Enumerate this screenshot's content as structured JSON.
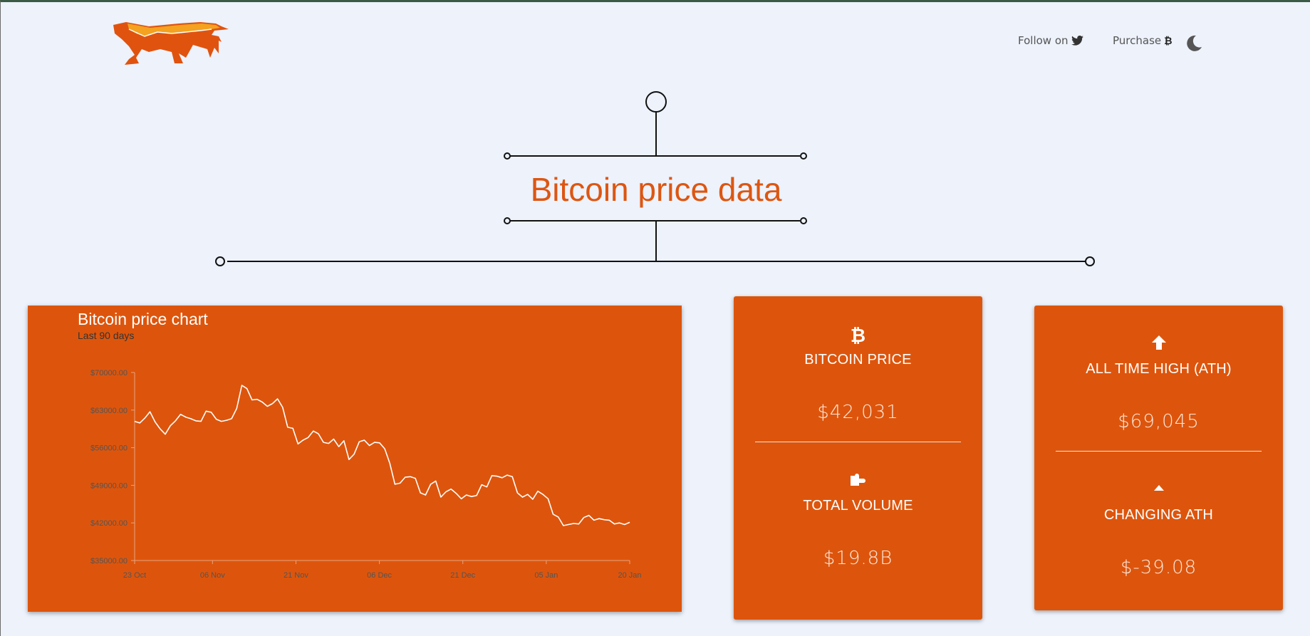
{
  "nav": {
    "follow_label": "Follow on",
    "follow_icon": "twitter-icon",
    "purchase_label": "Purchase",
    "purchase_icon": "bitcoin-icon",
    "theme_icon": "moon-icon"
  },
  "page_title": "Bitcoin price data",
  "colors": {
    "accent": "#dd550c",
    "background": "#edf2fb",
    "title": "#dd5611"
  },
  "price_card": {
    "price_icon": "bitcoin-icon",
    "price_label": "BITCOIN PRICE",
    "price_value": "$42,031",
    "volume_icon": "puzzle-icon",
    "volume_label": "TOTAL VOLUME",
    "volume_value": "$19.8B"
  },
  "ath_card": {
    "ath_icon": "arrow-up-icon",
    "ath_label": "ALL TIME HIGH (ATH)",
    "ath_value": "$69,045",
    "change_icon": "caret-up-icon",
    "change_label": "CHANGING ATH",
    "change_value": "$-39.08"
  },
  "chart_data": {
    "type": "line",
    "title": "Bitcoin price chart",
    "subtitle": "Last 90 days",
    "xlabel": "",
    "ylabel": "",
    "x_ticks": [
      "23 Oct",
      "06 Nov",
      "21 Nov",
      "06 Dec",
      "21 Dec",
      "05 Jan",
      "20 Jan"
    ],
    "y_ticks": [
      "$35000.00",
      "$42000.00",
      "$49000.00",
      "$56000.00",
      "$63000.00",
      "$70000.00"
    ],
    "ylim": [
      35000,
      70000
    ],
    "x_start": "2021-10-23",
    "x_end": "2022-01-20",
    "values": [
      60900,
      60600,
      61500,
      62700,
      60800,
      59500,
      58500,
      60100,
      61000,
      62200,
      61700,
      61400,
      61000,
      60900,
      62800,
      62600,
      61300,
      60900,
      61100,
      61400,
      63300,
      67600,
      67000,
      64900,
      65000,
      64500,
      63700,
      64200,
      65100,
      63500,
      59800,
      59600,
      56700,
      57400,
      57900,
      59100,
      58600,
      57000,
      56800,
      57600,
      56200,
      57300,
      53800,
      54800,
      57100,
      57400,
      56400,
      57000,
      56900,
      55800,
      53100,
      49200,
      49400,
      50500,
      50600,
      50300,
      47600,
      47200,
      49200,
      49800,
      46800,
      47800,
      48300,
      47500,
      46500,
      47200,
      46900,
      47100,
      49100,
      48700,
      50800,
      50700,
      50400,
      50900,
      50600,
      47600,
      46800,
      47300,
      46400,
      47900,
      47300,
      46500,
      43600,
      43100,
      41500,
      41700,
      41900,
      41800,
      43000,
      43400,
      42500,
      42800,
      42600,
      42500,
      41800,
      42000,
      41700,
      42100
    ]
  }
}
